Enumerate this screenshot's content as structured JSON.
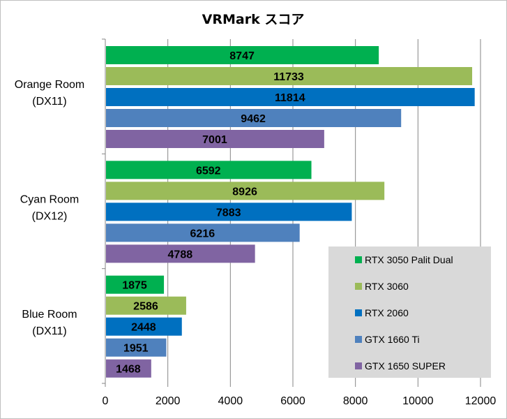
{
  "chart_data": {
    "type": "bar",
    "orientation": "horizontal",
    "title": "VRMark スコア",
    "xlabel": "",
    "ylabel": "",
    "xlim": [
      0,
      12000
    ],
    "x_ticks": [
      0,
      2000,
      4000,
      6000,
      8000,
      10000,
      12000
    ],
    "grid": true,
    "legend_position": "bottom-right",
    "categories": [
      [
        "Orange Room",
        "(DX11)"
      ],
      [
        "Cyan Room",
        "(DX12)"
      ],
      [
        "Blue Room",
        "(DX11)"
      ]
    ],
    "series": [
      {
        "name": "RTX 3050 Palit Dual",
        "color": "#00b050",
        "values": [
          8747,
          6592,
          1875
        ]
      },
      {
        "name": "RTX 3060",
        "color": "#9bbb59",
        "values": [
          11733,
          8926,
          2586
        ]
      },
      {
        "name": "RTX 2060",
        "color": "#0070c0",
        "values": [
          11814,
          7883,
          2448
        ]
      },
      {
        "name": "GTX 1660 Ti",
        "color": "#4f81bd",
        "values": [
          9462,
          6216,
          1951
        ]
      },
      {
        "name": "GTX 1650 SUPER",
        "color": "#8064a2",
        "values": [
          7001,
          4788,
          1468
        ]
      }
    ]
  }
}
